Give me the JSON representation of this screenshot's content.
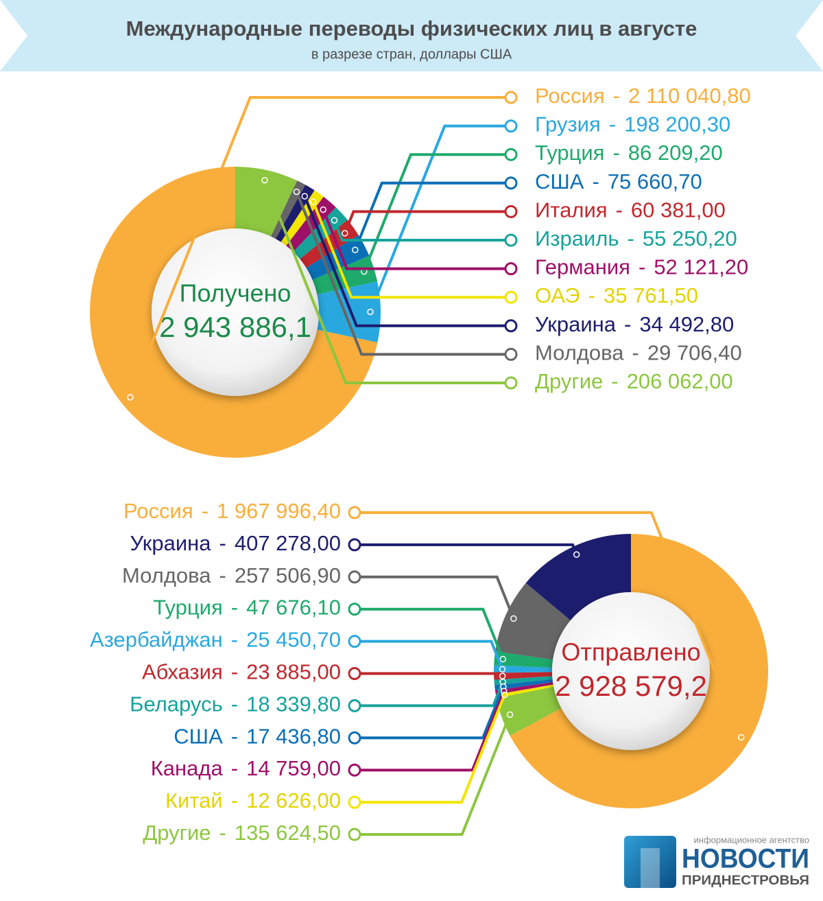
{
  "header": {
    "title": "Международные переводы физических лиц в августе",
    "subtitle": "в разрезе стран, доллары США"
  },
  "chart_data": [
    {
      "type": "donut",
      "direction": "counterclockwise",
      "center_title": "Получено",
      "center_value": "2 943 886,1",
      "separator": "-",
      "categories": [
        "Россия",
        "Грузия",
        "Турция",
        "США",
        "Италия",
        "Израиль",
        "Германия",
        "ОАЭ",
        "Украина",
        "Молдова",
        "Другие"
      ],
      "values": [
        2110040.8,
        198200.3,
        86209.2,
        75660.7,
        60381.0,
        55250.2,
        52121.2,
        35761.5,
        34492.8,
        29706.4,
        206062.0
      ],
      "value_labels": [
        "2 110 040,80",
        "198 200,30",
        "86 209,20",
        "75 660,70",
        "60 381,00",
        "55 250,20",
        "52 121,20",
        "35 761,50",
        "34 492,80",
        "29 706,40",
        "206 062,00"
      ],
      "colors": [
        "#f9ae3b",
        "#29a8df",
        "#1daa6b",
        "#0b6fb5",
        "#c1272d",
        "#16a39a",
        "#9e1068",
        "#f2e500",
        "#1d1d6f",
        "#666666",
        "#8dc63f"
      ],
      "center_color": "#1a8a4a"
    },
    {
      "type": "donut",
      "direction": "counterclockwise",
      "center_title": "Отправлено",
      "center_value": "2 928 579,2",
      "separator": "-",
      "categories": [
        "Россия",
        "Украина",
        "Молдова",
        "Турция",
        "Азербайджан",
        "Абхазия",
        "Беларусь",
        "США",
        "Канада",
        "Китай",
        "Другие"
      ],
      "values": [
        1967996.4,
        407278.0,
        257506.9,
        47676.1,
        25450.7,
        23885.0,
        18339.8,
        17436.8,
        14759.0,
        12626.0,
        135624.5
      ],
      "value_labels": [
        "1 967 996,40",
        "407 278,00",
        "257 506,90",
        "47 676,10",
        "25 450,70",
        "23 885,00",
        "18 339,80",
        "17 436,80",
        "14 759,00",
        "12 626,00",
        "135 624,50"
      ],
      "colors": [
        "#f9ae3b",
        "#1d1d6f",
        "#666666",
        "#1daa6b",
        "#29a8df",
        "#c1272d",
        "#16a39a",
        "#0b6fb5",
        "#9e1068",
        "#f2e500",
        "#8dc63f"
      ],
      "center_color": "#c1272d"
    }
  ],
  "logo": {
    "tagline": "информационное агентство",
    "name": "НОВОСТИ",
    "region": "ПРИДНЕСТРОВЬЯ"
  }
}
